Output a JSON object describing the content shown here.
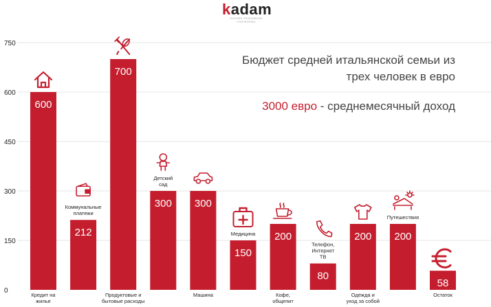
{
  "logo": {
    "text": "kadam",
    "first_letter": "k",
    "rest": "adam",
    "subtitle": "ОНЛАЙН-РЕКЛАМНАЯ ПЛАТФОРМА"
  },
  "title_line1": "Бюджет средней итальянской семьи из",
  "title_line2": "трех человек в евро",
  "income": {
    "amount": "3000 евро",
    "separator": " - ",
    "text": "среднемесячный доход"
  },
  "colors": {
    "bar": "#c41e2e",
    "grid": "#e6e6e6",
    "axis_text": "#222222",
    "bar_label": "#ffffff"
  },
  "chart_data": {
    "type": "bar",
    "ylim": [
      0,
      750
    ],
    "yticks": [
      0,
      150,
      300,
      450,
      600,
      750
    ],
    "grid": true,
    "categories": [
      "Кредит на жилье",
      "Коммунальные платежи",
      "Продуктовые и бытовые расходы",
      "Детский сад",
      "Машина",
      "Медицина",
      "Кофе, общепит",
      "Телефон, Интернет ТВ",
      "Одежда и уход за собой",
      "Путешествия",
      "Остаток"
    ],
    "values": [
      600,
      212,
      700,
      300,
      300,
      150,
      200,
      80,
      200,
      200,
      58
    ],
    "bottom_labels": [
      [
        "Кредит на",
        "жилье"
      ],
      [],
      [
        "Продуктовые и",
        "бытовые расходы"
      ],
      [],
      [
        "Машина"
      ],
      [],
      [
        "Кофе,",
        "общепит"
      ],
      [],
      [
        "Одежда и",
        "уход за собой"
      ],
      [],
      [
        "Остаток"
      ]
    ],
    "top_labels": [
      [],
      [
        "Коммунальные",
        "платежи"
      ],
      [],
      [
        "Детский",
        "сад"
      ],
      [],
      [
        "Медицина"
      ],
      [],
      [
        "Телефон,",
        "Интернет",
        "ТВ"
      ],
      [],
      [
        "Путешествия"
      ],
      []
    ],
    "icons": [
      "house-icon",
      "wallet-icon",
      "fork-spoon-icon",
      "child-icon",
      "car-icon",
      "first-aid-kit-icon",
      "coffee-cup-icon",
      "phone-icon",
      "tshirt-icon",
      "sunbed-icon",
      "euro-icon"
    ]
  }
}
